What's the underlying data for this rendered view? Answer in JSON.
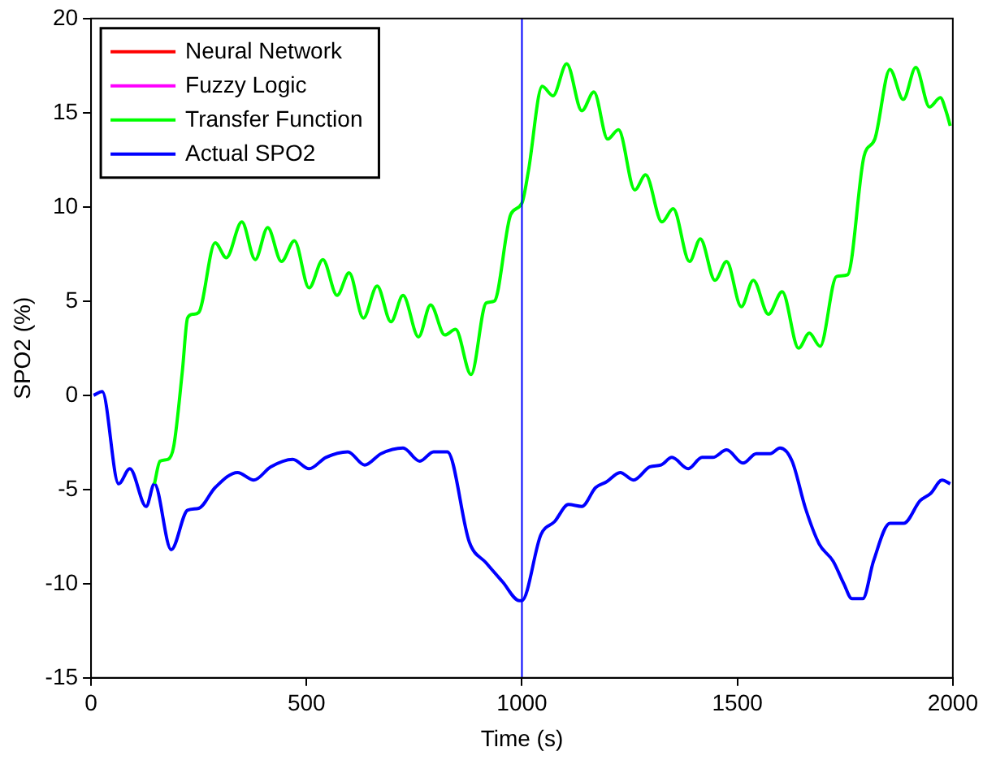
{
  "chart_data": {
    "type": "line",
    "xlabel": "Time (s)",
    "ylabel": "SPO2 (%)",
    "xlim": [
      0,
      2000
    ],
    "xticks": [
      0,
      500,
      1000,
      1500,
      2000
    ],
    "ylim": [
      -15,
      20
    ],
    "yticks": [
      -15,
      -10,
      -5,
      0,
      5,
      10,
      15,
      20
    ],
    "grid": false,
    "legend": "top left",
    "marker": "none",
    "line_style": "solid",
    "ref_lines": [
      {
        "axis": "x",
        "value": 1000,
        "label": null,
        "color": "#0000ff"
      }
    ],
    "series": [
      {
        "name": "Neural Network",
        "color": "#ff0000"
      },
      {
        "name": "Fuzzy Logic",
        "color": "#ff00ff"
      },
      {
        "name": "Transfer Function",
        "color": "#00ff00",
        "x": [
          147,
          160,
          179,
          192,
          212,
          224,
          237,
          250,
          288,
          314,
          350,
          381,
          410,
          442,
          472,
          506,
          538,
          571,
          599,
          632,
          664,
          696,
          724,
          760,
          788,
          821,
          846,
          882,
          917,
          936,
          974,
          1000,
          1015,
          1047,
          1072,
          1104,
          1139,
          1167,
          1199,
          1224,
          1262,
          1287,
          1325,
          1351,
          1389,
          1414,
          1448,
          1475,
          1509,
          1537,
          1572,
          1604,
          1642,
          1667,
          1692,
          1730,
          1756,
          1794,
          1819,
          1854,
          1885,
          1914,
          1946,
          1971,
          1984,
          1994
        ],
        "values": [
          -4.7,
          -3.5,
          -3.4,
          -2.7,
          1.3,
          4.1,
          4.3,
          4.4,
          8.1,
          7.3,
          9.2,
          7.2,
          8.9,
          7.1,
          8.2,
          5.7,
          7.2,
          5.3,
          6.5,
          4.1,
          5.8,
          3.9,
          5.3,
          3.1,
          4.8,
          3.2,
          3.5,
          1.1,
          4.9,
          5.0,
          9.6,
          10.2,
          11.9,
          16.4,
          15.9,
          17.6,
          15.1,
          16.1,
          13.6,
          14.1,
          10.9,
          11.7,
          9.2,
          9.9,
          7.1,
          8.3,
          6.1,
          7.1,
          4.7,
          6.1,
          4.3,
          5.5,
          2.5,
          3.3,
          2.6,
          6.3,
          6.4,
          12.7,
          13.6,
          17.3,
          15.7,
          17.4,
          15.3,
          15.8,
          15.1,
          14.3
        ]
      },
      {
        "name": "Actual SPO2",
        "color": "#0000ff",
        "x": [
          6,
          26,
          64,
          90,
          128,
          147,
          186,
          224,
          250,
          288,
          340,
          378,
          417,
          468,
          506,
          545,
          596,
          635,
          673,
          724,
          763,
          795,
          827,
          878,
          917,
          955,
          994,
          1000,
          1044,
          1076,
          1108,
          1139,
          1171,
          1196,
          1228,
          1259,
          1297,
          1323,
          1348,
          1386,
          1418,
          1443,
          1475,
          1513,
          1544,
          1576,
          1599,
          1627,
          1658,
          1690,
          1722,
          1747,
          1766,
          1791,
          1816,
          1854,
          1886,
          1924,
          1949,
          1975,
          1994
        ],
        "values": [
          0,
          0.2,
          -4.7,
          -3.9,
          -5.9,
          -4.7,
          -8.2,
          -6.1,
          -6.0,
          -4.9,
          -4.1,
          -4.5,
          -3.8,
          -3.4,
          -3.9,
          -3.3,
          -3.0,
          -3.7,
          -3.1,
          -2.8,
          -3.5,
          -3.0,
          -3.0,
          -7.8,
          -8.9,
          -9.9,
          -10.9,
          -10.9,
          -7.4,
          -6.7,
          -5.8,
          -5.9,
          -4.9,
          -4.6,
          -4.1,
          -4.5,
          -3.8,
          -3.7,
          -3.3,
          -3.9,
          -3.3,
          -3.3,
          -2.9,
          -3.6,
          -3.1,
          -3.1,
          -2.8,
          -3.5,
          -6.0,
          -7.9,
          -8.8,
          -10.0,
          -10.8,
          -10.8,
          -8.8,
          -6.8,
          -6.8,
          -5.6,
          -5.2,
          -4.5,
          -4.7
        ]
      }
    ]
  }
}
